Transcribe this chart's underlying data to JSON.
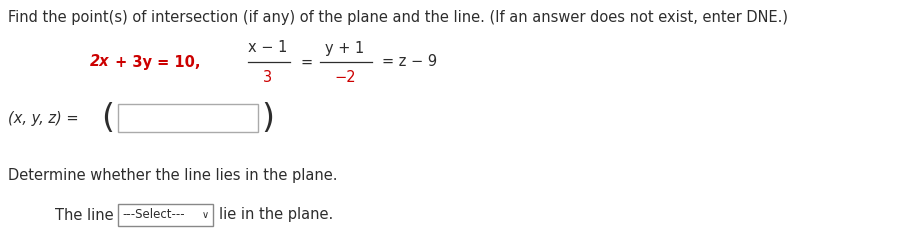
{
  "title_text": "Find the point(s) of intersection (if any) of the plane and the line. (If an answer does not exist, enter DNE.)",
  "plane_2x": "2x",
  "plane_plus3y": " + 3y = 10,",
  "frac1_num": "x − 1",
  "frac1_den": "3",
  "frac2_num": "y + 1",
  "frac2_den": "−2",
  "eq_sign": "=",
  "line_tail": "= z − 9",
  "xyz_label": "(x, y, z) =",
  "determine_text": "Determine whether the line lies in the plane.",
  "the_line": "The line",
  "select_text": "---Select---",
  "select_arrow": "∨",
  "lie_text": "lie in the plane.",
  "bg_color": "#ffffff",
  "text_color": "#2d2d2d",
  "red_color": "#cc0000",
  "title_fontsize": 10.5,
  "body_fontsize": 10.5,
  "small_fontsize": 9.5
}
